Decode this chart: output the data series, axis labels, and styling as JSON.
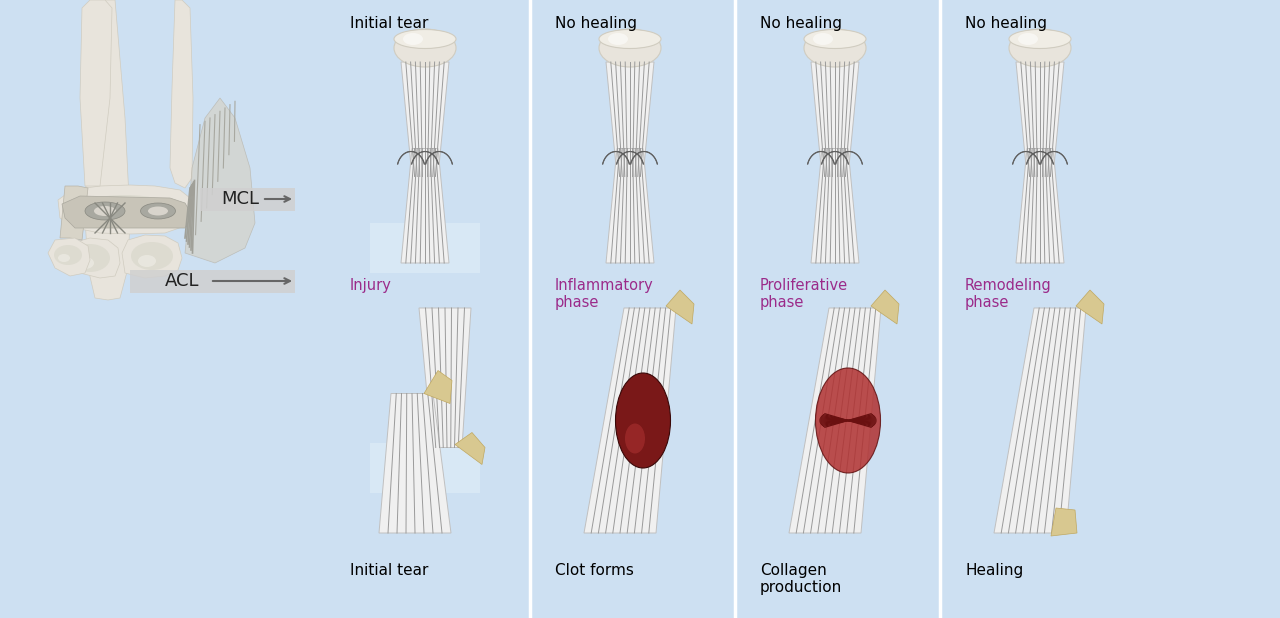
{
  "bg_color": "#cce0f0",
  "white_bg": "#ffffff",
  "panel_bg": "#c8dff0",
  "phase_color": "#9b2b8a",
  "top_labels": [
    "Initial tear",
    "No healing",
    "No healing",
    "No healing"
  ],
  "phase_labels": [
    "Injury",
    "Inflammatory\nphase",
    "Proliferative\nphase",
    "Remodeling\nphase"
  ],
  "bottom_labels": [
    "Initial tear",
    "Clot forms",
    "Collagen\nproduction",
    "Healing"
  ],
  "clot_color": "#7a1818",
  "collagen_color": "#b03030",
  "bone_light": "#e8e4dc",
  "bone_mid": "#d0ccc0",
  "bone_dark": "#b8b4a8",
  "ligament_white": "#f0f0f0",
  "ligament_stripe": "#9a9a9a",
  "beige_bone": "#d8c890"
}
